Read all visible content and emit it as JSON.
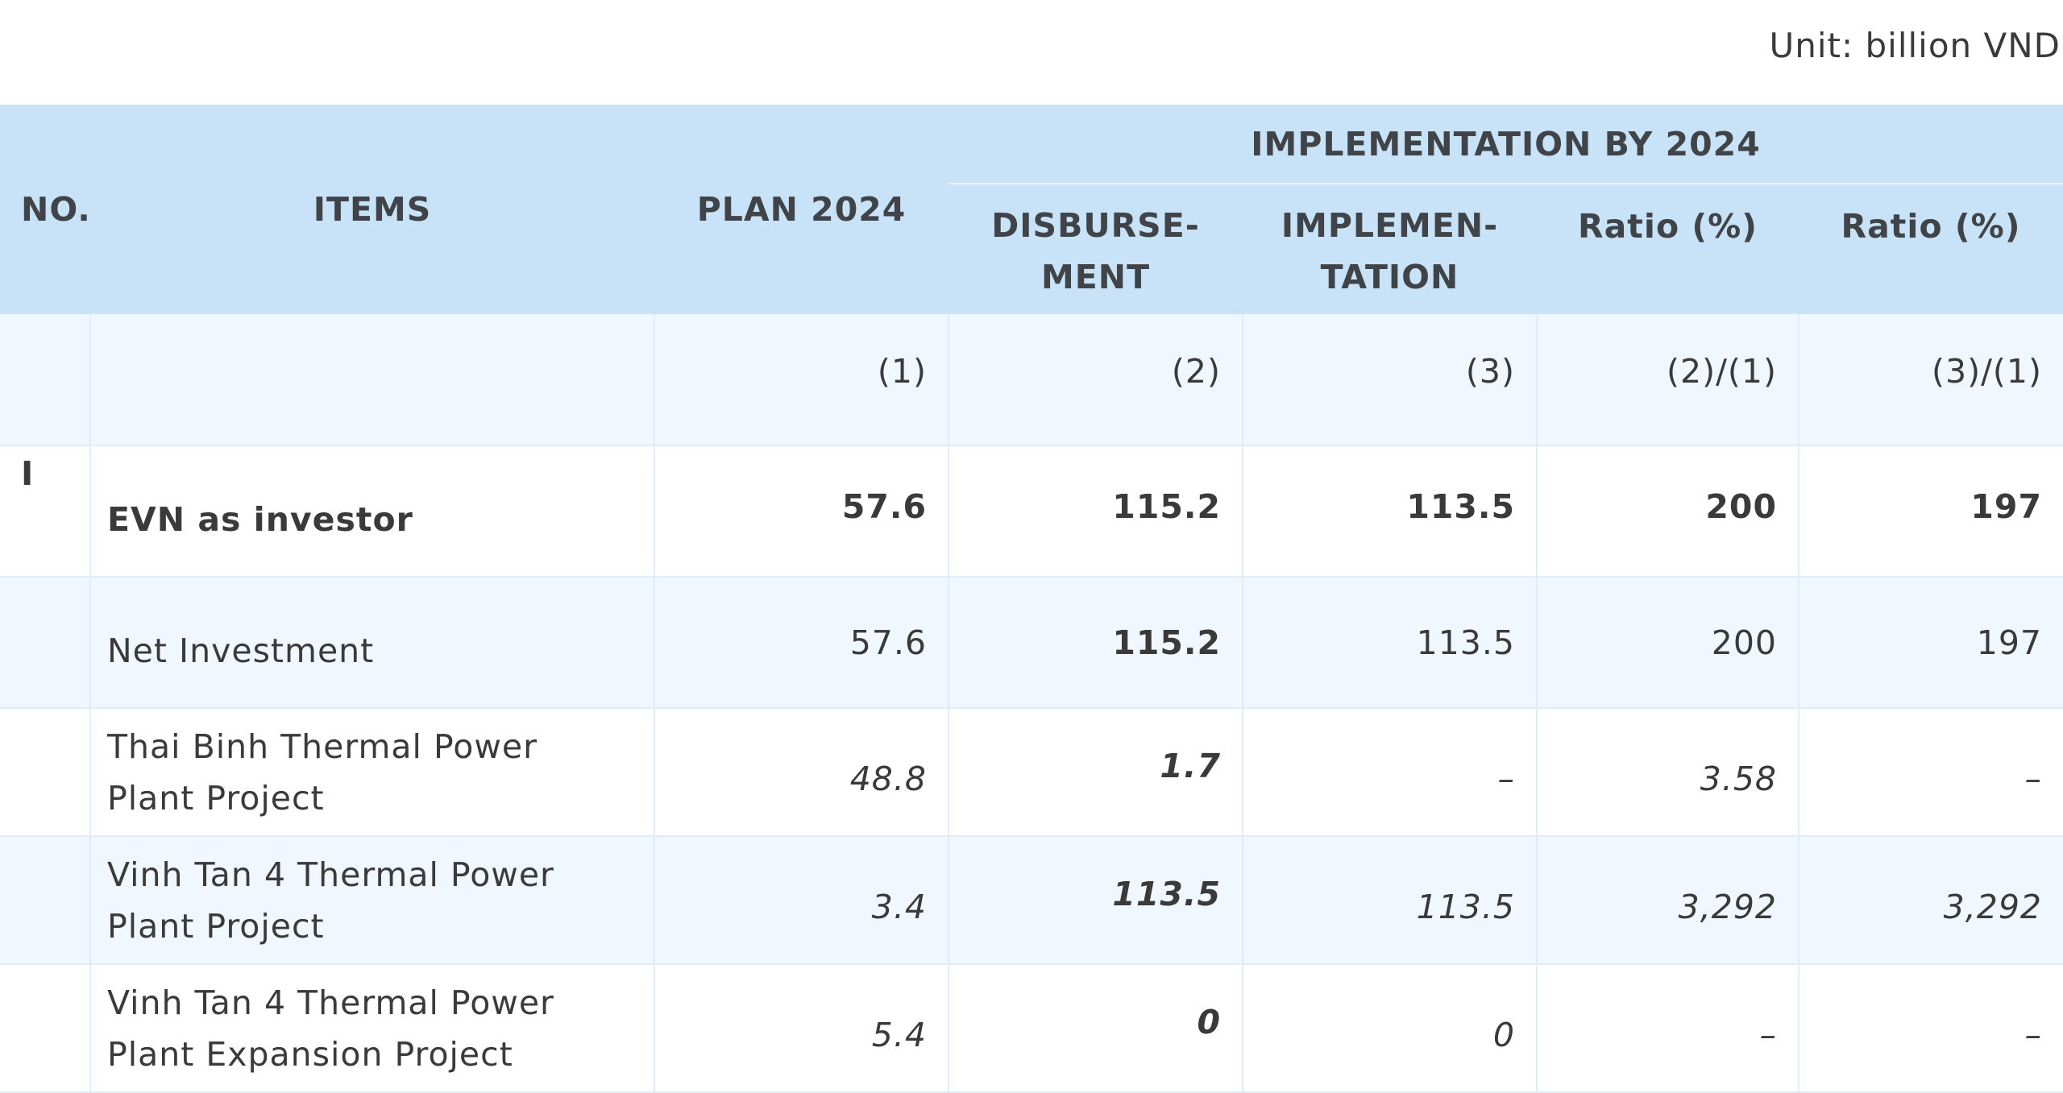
{
  "unit_label": "Unit: billion VND",
  "headers": {
    "no": "NO.",
    "items": "ITEMS",
    "plan": "PLAN 2024",
    "group": "IMPLEMENTATION BY 2024",
    "disbursement": "DISBURSE-\nMENT",
    "implementation": "IMPLEMEN-\nTATION",
    "ratio1": "Ratio (%)",
    "ratio2": "Ratio (%)"
  },
  "index_row": [
    "",
    "",
    "(1)",
    "(2)",
    "(3)",
    "(2)/(1)",
    "(3)/(1)"
  ],
  "rows": [
    {
      "no": "I",
      "item": "EVN as investor",
      "plan": "57.6",
      "disbursement": "115.2",
      "implementation": "113.5",
      "ratio1": "200",
      "ratio2": "197"
    },
    {
      "no": "",
      "item": "Net Investment",
      "plan": "57.6",
      "disbursement": "115.2",
      "implementation": "113.5",
      "ratio1": "200",
      "ratio2": "197"
    },
    {
      "no": "",
      "item": "Thai Binh Thermal Power Plant Project",
      "plan": "48.8",
      "disbursement": "1.7",
      "implementation": "–",
      "ratio1": "3.58",
      "ratio2": "–"
    },
    {
      "no": "",
      "item": "Vinh Tan 4 Thermal Power Plant Project",
      "plan": "3.4",
      "disbursement": "113.5",
      "implementation": "113.5",
      "ratio1": "3,292",
      "ratio2": "3,292"
    },
    {
      "no": "",
      "item": "Vinh Tan 4 Thermal Power Plant Expansion Project",
      "plan": "5.4",
      "disbursement": "0",
      "implementation": "0",
      "ratio1": "–",
      "ratio2": "–"
    }
  ]
}
